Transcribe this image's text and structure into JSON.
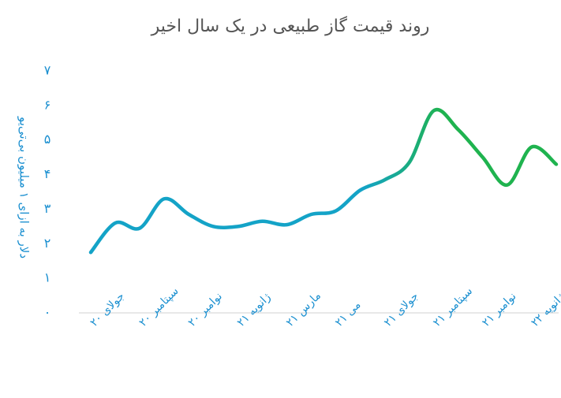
{
  "chart_data": {
    "type": "line",
    "title": "روند قیمت گاز طبیعی در یک سال اخیر",
    "y_label": "دلار به ازای ۱ میلیون بی‌تی‌یو",
    "categories": [
      "جولای ۲۰",
      null,
      "سپتامبر ۲۰",
      null,
      "نوامبر ۲۰",
      null,
      "ژانویه ۲۱",
      null,
      "مارس ۲۱",
      null,
      "می ۲۱",
      null,
      "جولای ۲۱",
      null,
      "سپتامبر ۲۱",
      null,
      "نوامبر ۲۱",
      null,
      "ژانویه ۲۲",
      null
    ],
    "values": [
      1.75,
      2.6,
      2.45,
      3.3,
      2.85,
      2.5,
      2.5,
      2.65,
      2.55,
      2.85,
      2.95,
      3.55,
      3.85,
      4.35,
      5.85,
      5.3,
      4.5,
      3.7,
      4.8,
      4.3
    ],
    "gradient": [
      "#14a3c7",
      "#1fb34f"
    ],
    "ylim": [
      0,
      7
    ],
    "yticks": [
      {
        "value": 0,
        "label": "۰"
      },
      {
        "value": 1,
        "label": "۱"
      },
      {
        "value": 2,
        "label": "۲"
      },
      {
        "value": 3,
        "label": "۳"
      },
      {
        "value": 4,
        "label": "۴"
      },
      {
        "value": 5,
        "label": "۵"
      },
      {
        "value": 6,
        "label": "۶"
      },
      {
        "value": 7,
        "label": "۷"
      }
    ],
    "grid": false
  }
}
